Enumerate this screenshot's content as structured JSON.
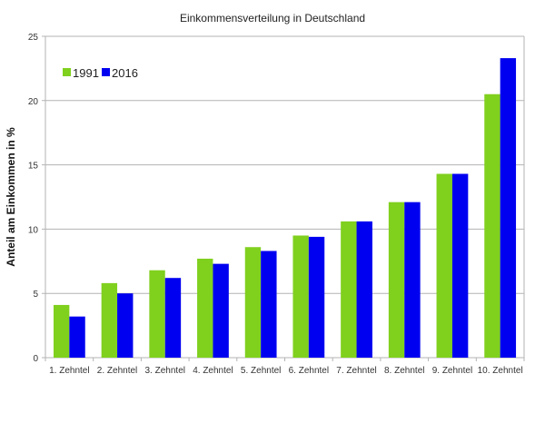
{
  "chart_data": {
    "type": "bar",
    "title": "Einkommensverteilung in Deutschland",
    "xlabel": "",
    "ylabel": "Anteil am Einkommen in %",
    "ylim": [
      0,
      25
    ],
    "yticks": [
      0,
      5,
      10,
      15,
      20,
      25
    ],
    "grid": true,
    "legend_position": "top-left",
    "categories": [
      "1. Zehntel",
      "2. Zehntel",
      "3. Zehntel",
      "4. Zehntel",
      "5. Zehntel",
      "6. Zehntel",
      "7. Zehntel",
      "8. Zehntel",
      "9. Zehntel",
      "10. Zehntel"
    ],
    "series": [
      {
        "name": "1991",
        "color": "#80d01e",
        "values": [
          4.1,
          5.8,
          6.8,
          7.7,
          8.6,
          9.5,
          10.6,
          12.1,
          14.3,
          20.5
        ]
      },
      {
        "name": "2016",
        "color": "#0000f0",
        "values": [
          3.2,
          5.0,
          6.2,
          7.3,
          8.3,
          9.4,
          10.6,
          12.1,
          14.3,
          23.3
        ]
      }
    ]
  }
}
